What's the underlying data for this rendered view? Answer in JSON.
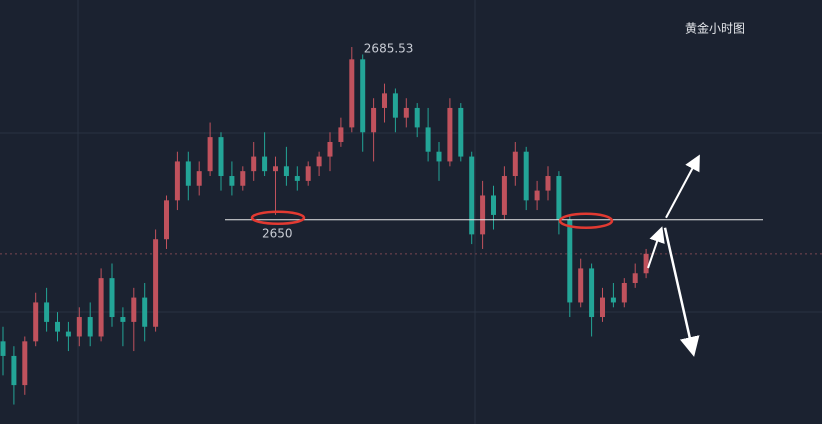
{
  "chart_data": {
    "type": "candlestick",
    "title": "黄金小时图",
    "ylim": [
      2608,
      2695.2
    ],
    "level": 2650,
    "up_color": "#c0525d",
    "down_color": "#23a597",
    "ohlc": [
      [
        2625,
        2628,
        2618,
        2622
      ],
      [
        2622,
        2624,
        2612,
        2616
      ],
      [
        2616,
        2626,
        2614,
        2625
      ],
      [
        2625,
        2635,
        2624,
        2633
      ],
      [
        2633,
        2636,
        2627,
        2629
      ],
      [
        2629,
        2631,
        2625,
        2627
      ],
      [
        2627,
        2629,
        2623,
        2626
      ],
      [
        2626,
        2632,
        2624,
        2630
      ],
      [
        2630,
        2633,
        2624,
        2626
      ],
      [
        2626,
        2640,
        2625,
        2638
      ],
      [
        2638,
        2641,
        2628,
        2630
      ],
      [
        2630,
        2632,
        2624,
        2629
      ],
      [
        2629,
        2636,
        2623,
        2634
      ],
      [
        2634,
        2637,
        2625,
        2628
      ],
      [
        2628,
        2648,
        2627,
        2646
      ],
      [
        2646,
        2655,
        2644,
        2654
      ],
      [
        2654,
        2664,
        2652,
        2662
      ],
      [
        2662,
        2664,
        2654,
        2657
      ],
      [
        2657,
        2662,
        2655,
        2660
      ],
      [
        2660,
        2670,
        2659,
        2667
      ],
      [
        2667,
        2668,
        2656,
        2659
      ],
      [
        2659,
        2662,
        2655,
        2657
      ],
      [
        2657,
        2661,
        2656,
        2660
      ],
      [
        2660,
        2666,
        2658,
        2663
      ],
      [
        2663,
        2668,
        2659,
        2660
      ],
      [
        2660,
        2663,
        2651,
        2661
      ],
      [
        2661,
        2665,
        2657,
        2659
      ],
      [
        2659,
        2661,
        2656,
        2658
      ],
      [
        2658,
        2662,
        2657,
        2661
      ],
      [
        2661,
        2664,
        2659,
        2663
      ],
      [
        2663,
        2668,
        2660,
        2666
      ],
      [
        2666,
        2671,
        2665,
        2669
      ],
      [
        2669,
        2685.53,
        2668,
        2683
      ],
      [
        2683,
        2684,
        2664,
        2668
      ],
      [
        2668,
        2675,
        2662,
        2673
      ],
      [
        2673,
        2678,
        2670,
        2676
      ],
      [
        2676,
        2677,
        2668,
        2671
      ],
      [
        2671,
        2675,
        2669,
        2673
      ],
      [
        2673,
        2674,
        2667,
        2669
      ],
      [
        2669,
        2673,
        2662,
        2664
      ],
      [
        2664,
        2666,
        2658,
        2662
      ],
      [
        2662,
        2675,
        2661,
        2673
      ],
      [
        2673,
        2674,
        2662,
        2663
      ],
      [
        2663,
        2664,
        2645,
        2647
      ],
      [
        2647,
        2658,
        2644,
        2655
      ],
      [
        2655,
        2657,
        2648,
        2651
      ],
      [
        2651,
        2661,
        2650,
        2659
      ],
      [
        2659,
        2666,
        2657,
        2664
      ],
      [
        2664,
        2665,
        2652,
        2654
      ],
      [
        2654,
        2658,
        2652,
        2656
      ],
      [
        2656,
        2661,
        2654,
        2659
      ],
      [
        2659,
        2660,
        2647,
        2650
      ],
      [
        2650,
        2651,
        2630,
        2633
      ],
      [
        2633,
        2642,
        2632,
        2640
      ],
      [
        2640,
        2641,
        2626,
        2630
      ],
      [
        2630,
        2636,
        2629,
        2634
      ],
      [
        2634,
        2637,
        2632,
        2633
      ],
      [
        2633,
        2638,
        2632,
        2637
      ],
      [
        2637,
        2641,
        2636,
        2639
      ],
      [
        2639,
        2644,
        2638,
        2643
      ]
    ]
  }
}
